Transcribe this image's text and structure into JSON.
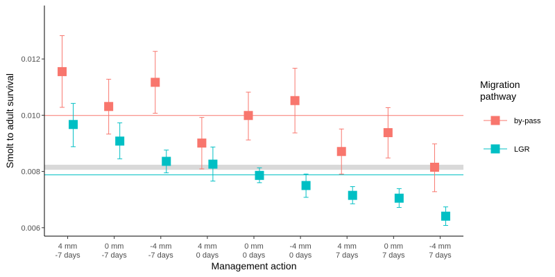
{
  "chart_data": {
    "type": "scatter",
    "title": "",
    "xlabel": "Management action",
    "ylabel": "Smolt to adult survival",
    "ylim": [
      0.0057,
      0.0139
    ],
    "yticks": [
      "0.006",
      "0.008",
      "0.010",
      "0.012"
    ],
    "ytick_values": [
      0.006,
      0.008,
      0.01,
      0.012
    ],
    "categories": [
      [
        "4 mm",
        "-7 days"
      ],
      [
        "0 mm",
        "-7 days"
      ],
      [
        "-4 mm",
        "-7 days"
      ],
      [
        "4 mm",
        "0 days"
      ],
      [
        "0 mm",
        "0 days"
      ],
      [
        "-4 mm",
        "0 days"
      ],
      [
        "4 mm",
        "7 days"
      ],
      [
        "0 mm",
        "7 days"
      ],
      [
        "-4 mm",
        "7 days"
      ]
    ],
    "legend": {
      "title": [
        "Migration",
        "pathway"
      ],
      "position": "right"
    },
    "series": [
      {
        "name": "by-pass",
        "color": "#F8766D",
        "values": [
          0.01155,
          0.01031,
          0.01117,
          0.00901,
          0.00999,
          0.01052,
          0.00871,
          0.00938,
          0.00815
        ],
        "lower": [
          0.01028,
          0.00933,
          0.01007,
          0.00809,
          0.00912,
          0.00937,
          0.00791,
          0.00848,
          0.00728
        ],
        "upper": [
          0.01283,
          0.01128,
          0.01227,
          0.00992,
          0.01082,
          0.01167,
          0.00951,
          0.01027,
          0.00898
        ],
        "reference_line": 0.00999
      },
      {
        "name": "LGR",
        "color": "#00BFC4",
        "values": [
          0.00967,
          0.00908,
          0.00836,
          0.00826,
          0.00786,
          0.0075,
          0.00715,
          0.00705,
          0.00641
        ],
        "lower": [
          0.00888,
          0.00845,
          0.00795,
          0.00766,
          0.0076,
          0.00708,
          0.00685,
          0.00672,
          0.00608
        ],
        "upper": [
          0.01042,
          0.00973,
          0.00876,
          0.00887,
          0.00813,
          0.00791,
          0.00746,
          0.00739,
          0.00674
        ],
        "reference_line": 0.00788
      }
    ],
    "band": {
      "lower": 0.00806,
      "upper": 0.00824,
      "color": "#d9d9d9"
    },
    "grid": false
  }
}
